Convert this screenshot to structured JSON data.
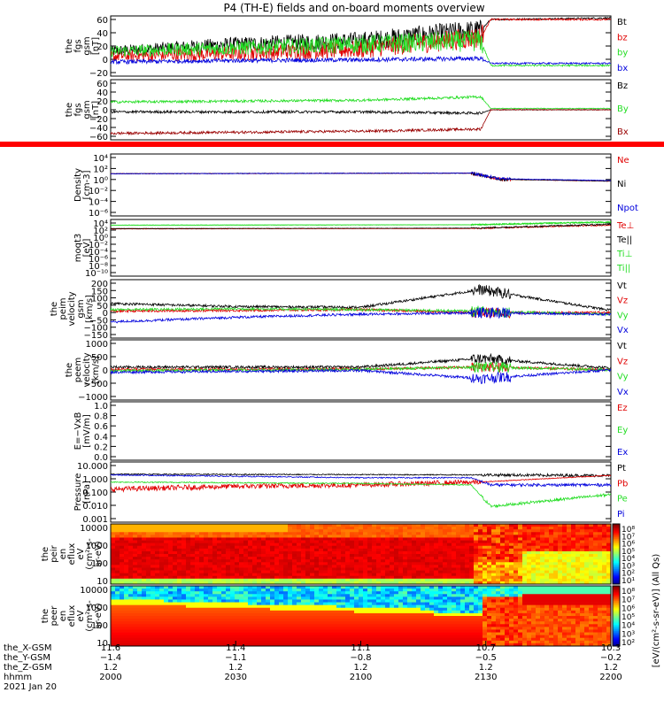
{
  "title": "P4 (TH-E) fields and on-board moments overview",
  "colors": {
    "black": "#000000",
    "red": "#e00000",
    "green": "#22dd22",
    "blue": "#0000dd",
    "darkred": "#990000",
    "bar": "#ff0000"
  },
  "panels": [
    {
      "ylabel": [
        "the",
        "fgs",
        "gsm",
        "[nT]"
      ],
      "ticks": [
        "60",
        "40",
        "20",
        "0",
        "−20"
      ],
      "legend": [
        {
          "text": "Bt",
          "color": "#000000"
        },
        {
          "text": "bz",
          "color": "#e00000"
        },
        {
          "text": "by",
          "color": "#22dd22"
        },
        {
          "text": "bx",
          "color": "#0000dd"
        }
      ]
    },
    {
      "ylabel": [
        "the",
        "fgs",
        "gsm",
        "[nT]"
      ],
      "ticks": [
        "60",
        "40",
        "20",
        "0",
        "−20",
        "−40",
        "−60"
      ],
      "legend": [
        {
          "text": "Bz",
          "color": "#000000"
        },
        {
          "text": "By",
          "color": "#22dd22"
        },
        {
          "text": "Bx",
          "color": "#990000"
        }
      ]
    },
    {
      "ylabel": [
        "Density",
        "[cm-3]"
      ],
      "ticks": [
        "10⁴",
        "10²",
        "10⁰",
        "10⁻²",
        "10⁻⁴",
        "10⁻⁶"
      ],
      "legend": [
        {
          "text": "Ne",
          "color": "#e00000"
        },
        {
          "text": "Ni",
          "color": "#000000"
        },
        {
          "text": "Npot",
          "color": "#0000dd"
        }
      ]
    },
    {
      "ylabel": [
        "moqt3",
        "[eV]"
      ],
      "ticks": [
        "10⁴",
        "10²",
        "10⁰",
        "10⁻²",
        "10⁻⁴",
        "10⁻⁶",
        "10⁻⁸",
        "10⁻¹⁰"
      ],
      "legend": [
        {
          "text": "Te⊥",
          "color": "#e00000"
        },
        {
          "text": "Te||",
          "color": "#000000"
        },
        {
          "text": "Ti⊥",
          "color": "#22dd22"
        },
        {
          "text": "Ti||",
          "color": "#22dd22"
        }
      ]
    },
    {
      "ylabel": [
        "the",
        "peim",
        "velocity",
        "gsm",
        "[km/s]"
      ],
      "ticks": [
        "200",
        "150",
        "100",
        "50",
        "0",
        "−50",
        "−100",
        "−150"
      ],
      "legend": [
        {
          "text": "Vt",
          "color": "#000000"
        },
        {
          "text": "Vz",
          "color": "#e00000"
        },
        {
          "text": "Vy",
          "color": "#22dd22"
        },
        {
          "text": "Vx",
          "color": "#0000dd"
        }
      ]
    },
    {
      "ylabel": [
        "the",
        "peem",
        "velocity",
        "[km/s]"
      ],
      "ticks": [
        "1000",
        "500",
        "0",
        "−500",
        "−1000"
      ],
      "legend": [
        {
          "text": "Vt",
          "color": "#000000"
        },
        {
          "text": "Vz",
          "color": "#e00000"
        },
        {
          "text": "Vy",
          "color": "#22dd22"
        },
        {
          "text": "Vx",
          "color": "#0000dd"
        }
      ]
    },
    {
      "ylabel": [
        "E=−VxB",
        "[mV/m]"
      ],
      "ticks": [
        "1.0",
        "0.8",
        "0.6",
        "0.4",
        "0.2",
        "0.0"
      ],
      "legend": [
        {
          "text": "Ez",
          "color": "#e00000"
        },
        {
          "text": "Ey",
          "color": "#22dd22"
        },
        {
          "text": "Ex",
          "color": "#0000dd"
        }
      ]
    },
    {
      "ylabel": [
        "Pressure",
        "[nPa]"
      ],
      "ticks": [
        "10.000",
        "1.000",
        "0.100",
        "0.010",
        "0.001"
      ],
      "legend": [
        {
          "text": "Pt",
          "color": "#000000"
        },
        {
          "text": "Pb",
          "color": "#e00000"
        },
        {
          "text": "Pe",
          "color": "#22dd22"
        },
        {
          "text": "Pi",
          "color": "#0000dd"
        }
      ]
    },
    {
      "ylabel": [
        "the",
        "peir",
        "en",
        "eflux",
        "eV",
        "(cm²-s-",
        "sr-eV)"
      ],
      "ticks": [
        "10000",
        "1000",
        "100",
        "10"
      ],
      "colorbar_ticks": [
        "10⁸",
        "10⁷",
        "10⁶",
        "10⁵",
        "10⁴",
        "10³",
        "10²",
        "10¹"
      ],
      "colorbar_label": "[eV/(cm²-s-sr-eV)] (All Qs)"
    },
    {
      "ylabel": [
        "the",
        "peer",
        "en",
        "eflux",
        "eV",
        "(cm²-s-",
        "sr-eV)"
      ],
      "ticks": [
        "10000",
        "1000",
        "100",
        "10"
      ],
      "colorbar_ticks": [
        "10⁸",
        "10⁷",
        "10⁶",
        "10⁵",
        "10⁴",
        "10³",
        "10²"
      ],
      "colorbar_label": "[eV/(cm²-s-sr-eV)]"
    }
  ],
  "xaxis": {
    "row_labels": [
      "the_X-GSM",
      "the_Y-GSM",
      "the_Z-GSM",
      "hhmm",
      "2021 Jan 20"
    ],
    "columns": [
      [
        "11.6",
        "−1.4",
        "1.2",
        "2000"
      ],
      [
        "11.4",
        "−1.1",
        "1.2",
        "2030"
      ],
      [
        "11.1",
        "−0.8",
        "1.2",
        "2100"
      ],
      [
        "10.7",
        "−0.5",
        "1.2",
        "2130"
      ],
      [
        "10.3",
        "−0.2",
        "1.2",
        "2200"
      ]
    ]
  },
  "chart_data": [
    {
      "type": "line",
      "ylabel": "the fgs gsm [nT]",
      "xlabel": "hhmm",
      "x_range": [
        "2000",
        "2200"
      ],
      "ylim": [
        -20,
        65
      ],
      "series": [
        {
          "name": "Bt",
          "color": "#000000",
          "x": [
            0.0,
            0.25,
            0.5,
            0.74,
            0.76,
            0.99
          ],
          "y": [
            15,
            25,
            30,
            45,
            60,
            62
          ]
        },
        {
          "name": "bz",
          "color": "#e00000",
          "x": [
            0.0,
            0.25,
            0.5,
            0.74,
            0.76,
            0.99
          ],
          "y": [
            8,
            12,
            18,
            35,
            60,
            60
          ]
        },
        {
          "name": "by",
          "color": "#22dd22",
          "x": [
            0.0,
            0.25,
            0.5,
            0.74,
            0.76,
            0.99
          ],
          "y": [
            15,
            20,
            25,
            30,
            -5,
            -5
          ]
        },
        {
          "name": "bx",
          "color": "#0000dd",
          "x": [
            0.0,
            0.25,
            0.5,
            0.74,
            0.76,
            0.99
          ],
          "y": [
            0,
            2,
            3,
            5,
            -2,
            -2
          ]
        }
      ]
    },
    {
      "type": "line",
      "ylabel": "the fgs gsm [nT]",
      "xlabel": "hhmm",
      "x_range": [
        "2000",
        "2200"
      ],
      "ylim": [
        -70,
        60
      ],
      "series": [
        {
          "name": "Bz",
          "color": "#000000",
          "x": [
            0.0,
            0.5,
            0.74,
            0.76,
            0.99
          ],
          "y": [
            -5,
            -5,
            -8,
            0,
            0
          ]
        },
        {
          "name": "By",
          "color": "#22dd22",
          "x": [
            0.0,
            0.5,
            0.74,
            0.76,
            0.99
          ],
          "y": [
            18,
            22,
            30,
            3,
            3
          ]
        },
        {
          "name": "Bx",
          "color": "#990000",
          "x": [
            0.0,
            0.5,
            0.74,
            0.76,
            0.99
          ],
          "y": [
            -55,
            -50,
            -45,
            0,
            0
          ]
        }
      ]
    },
    {
      "type": "line",
      "ylabel": "Density [cm-3]",
      "xlabel": "hhmm",
      "x_range": [
        "2000",
        "2200"
      ],
      "ylim": [
        -6,
        4
      ],
      "log": true,
      "series": [
        {
          "name": "Ne",
          "color": "#e00000",
          "x": [
            0.0,
            0.72,
            0.78,
            0.99
          ],
          "y": [
            1.0,
            1.1,
            0.0,
            -0.3
          ]
        },
        {
          "name": "Ni",
          "color": "#000000",
          "x": [
            0.0,
            0.72,
            0.78,
            0.99
          ],
          "y": [
            1.0,
            1.1,
            0.0,
            -0.3
          ]
        },
        {
          "name": "Npot",
          "color": "#0000dd",
          "x": [
            0.0,
            0.72,
            0.78,
            0.99
          ],
          "y": [
            1.0,
            1.1,
            0.1,
            -0.2
          ]
        }
      ]
    },
    {
      "type": "line",
      "ylabel": "moqt3 [eV]",
      "xlabel": "hhmm",
      "x_range": [
        "2000",
        "2200"
      ],
      "ylim": [
        -10,
        4
      ],
      "log": true,
      "series": [
        {
          "name": "Te⊥",
          "color": "#e00000",
          "x": [
            0.0,
            0.72,
            0.99
          ],
          "y": [
            2.0,
            2.1,
            3.0
          ]
        },
        {
          "name": "Te||",
          "color": "#000000",
          "x": [
            0.0,
            0.72,
            0.99
          ],
          "y": [
            2.1,
            2.2,
            3.2
          ]
        },
        {
          "name": "Ti⊥",
          "color": "#22dd22",
          "x": [
            0.0,
            0.72,
            0.99
          ],
          "y": [
            3.0,
            3.1,
            3.8
          ]
        },
        {
          "name": "Ti||",
          "color": "#22dd22",
          "x": [
            0.0,
            0.72,
            0.99
          ],
          "y": [
            3.0,
            3.1,
            3.8
          ]
        }
      ]
    },
    {
      "type": "line",
      "ylabel": "the peim velocity gsm [km/s]",
      "xlabel": "hhmm",
      "x_range": [
        "2000",
        "2200"
      ],
      "ylim": [
        -150,
        200
      ],
      "series": [
        {
          "name": "Vt",
          "color": "#000000",
          "x": [
            0.0,
            0.25,
            0.5,
            0.74,
            0.99
          ],
          "y": [
            60,
            40,
            35,
            150,
            20
          ]
        },
        {
          "name": "Vz",
          "color": "#e00000",
          "x": [
            0.0,
            0.25,
            0.5,
            0.74,
            0.99
          ],
          "y": [
            10,
            15,
            20,
            0,
            0
          ]
        },
        {
          "name": "Vy",
          "color": "#22dd22",
          "x": [
            0.0,
            0.25,
            0.5,
            0.74,
            0.99
          ],
          "y": [
            20,
            25,
            20,
            10,
            -10
          ]
        },
        {
          "name": "Vx",
          "color": "#0000dd",
          "x": [
            0.0,
            0.25,
            0.5,
            0.74,
            0.99
          ],
          "y": [
            -60,
            -30,
            -10,
            0,
            -10
          ]
        }
      ]
    },
    {
      "type": "line",
      "ylabel": "the peem velocity [km/s]",
      "xlabel": "hhmm",
      "x_range": [
        "2000",
        "2200"
      ],
      "ylim": [
        -1000,
        1000
      ],
      "series": [
        {
          "name": "Vt",
          "color": "#000000",
          "x": [
            0.0,
            0.5,
            0.74,
            0.99
          ],
          "y": [
            100,
            100,
            400,
            80
          ]
        },
        {
          "name": "Vz",
          "color": "#e00000",
          "x": [
            0.0,
            0.5,
            0.74,
            0.99
          ],
          "y": [
            20,
            30,
            100,
            10
          ]
        },
        {
          "name": "Vy",
          "color": "#22dd22",
          "x": [
            0.0,
            0.5,
            0.74,
            0.99
          ],
          "y": [
            -30,
            20,
            100,
            10
          ]
        },
        {
          "name": "Vx",
          "color": "#0000dd",
          "x": [
            0.0,
            0.5,
            0.74,
            0.99
          ],
          "y": [
            -80,
            -20,
            -300,
            -10
          ]
        }
      ]
    },
    {
      "type": "line",
      "ylabel": "E=−VxB [mV/m]",
      "xlabel": "hhmm",
      "x_range": [
        "2000",
        "2200"
      ],
      "ylim": [
        0,
        1
      ],
      "series": []
    },
    {
      "type": "line",
      "ylabel": "Pressure [nPa]",
      "xlabel": "hhmm",
      "x_range": [
        "2000",
        "2200"
      ],
      "ylim": [
        -3,
        1
      ],
      "log": true,
      "series": [
        {
          "name": "Pt",
          "color": "#000000",
          "x": [
            0.0,
            0.74,
            0.99
          ],
          "y": [
            0.25,
            0.2,
            0.15
          ]
        },
        {
          "name": "Pb",
          "color": "#e00000",
          "x": [
            0.0,
            0.25,
            0.5,
            0.74,
            0.99
          ],
          "y": [
            -0.8,
            -0.6,
            -0.5,
            -0.3,
            0.15
          ]
        },
        {
          "name": "Pe",
          "color": "#22dd22",
          "x": [
            0.0,
            0.5,
            0.72,
            0.76,
            0.99
          ],
          "y": [
            -0.3,
            -0.4,
            -0.5,
            -2.0,
            -1.2
          ]
        },
        {
          "name": "Pi",
          "color": "#0000dd",
          "x": [
            0.0,
            0.5,
            0.72,
            0.76,
            0.99
          ],
          "y": [
            0.2,
            0.0,
            0.0,
            -0.5,
            -0.5
          ]
        }
      ]
    },
    {
      "type": "heatmap",
      "ylabel": "the peir en eflux eV/(cm²-s-sr-eV)",
      "xlabel": "hhmm",
      "x_range": [
        "2000",
        "2200"
      ],
      "yrange": [
        5,
        25000
      ],
      "zrange": [
        "10¹",
        "10⁸"
      ]
    },
    {
      "type": "heatmap",
      "ylabel": "the peer en eflux eV/(cm²-s-sr-eV)",
      "xlabel": "hhmm",
      "x_range": [
        "2000",
        "2200"
      ],
      "yrange": [
        5,
        25000
      ],
      "zrange": [
        "10²",
        "10⁸"
      ]
    }
  ]
}
